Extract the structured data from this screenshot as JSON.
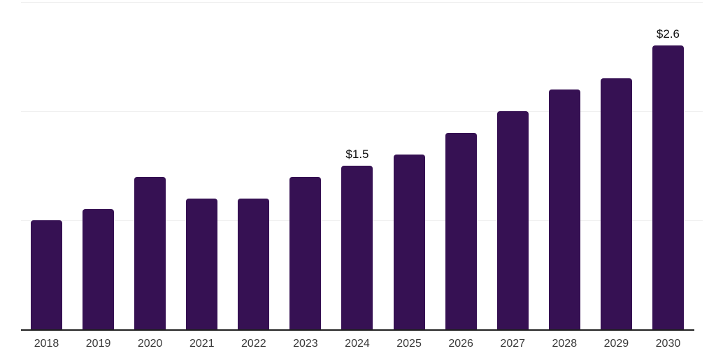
{
  "chart_data": {
    "type": "bar",
    "categories": [
      "2018",
      "2019",
      "2020",
      "2021",
      "2022",
      "2023",
      "2024",
      "2025",
      "2026",
      "2027",
      "2028",
      "2029",
      "2030"
    ],
    "values": [
      1.0,
      1.1,
      1.4,
      1.2,
      1.2,
      1.4,
      1.5,
      1.6,
      1.8,
      2.0,
      2.2,
      2.3,
      2.6
    ],
    "data_labels": [
      "",
      "",
      "",
      "",
      "",
      "",
      "$1.5",
      "",
      "",
      "",
      "",
      "",
      "$2.6"
    ],
    "title": "",
    "xlabel": "",
    "ylabel": "",
    "ylim": [
      0,
      3
    ],
    "gridline_values": [
      1,
      2,
      3
    ],
    "grid": true,
    "legend": "none",
    "y_axis_labels_visible": false,
    "colors": {
      "bar": "#361153",
      "axis_line": "#1f1f1f",
      "gridline": "#f0f0f0",
      "data_label": "#111111",
      "tick_label": "#3a3a3a",
      "background": "#ffffff"
    }
  }
}
